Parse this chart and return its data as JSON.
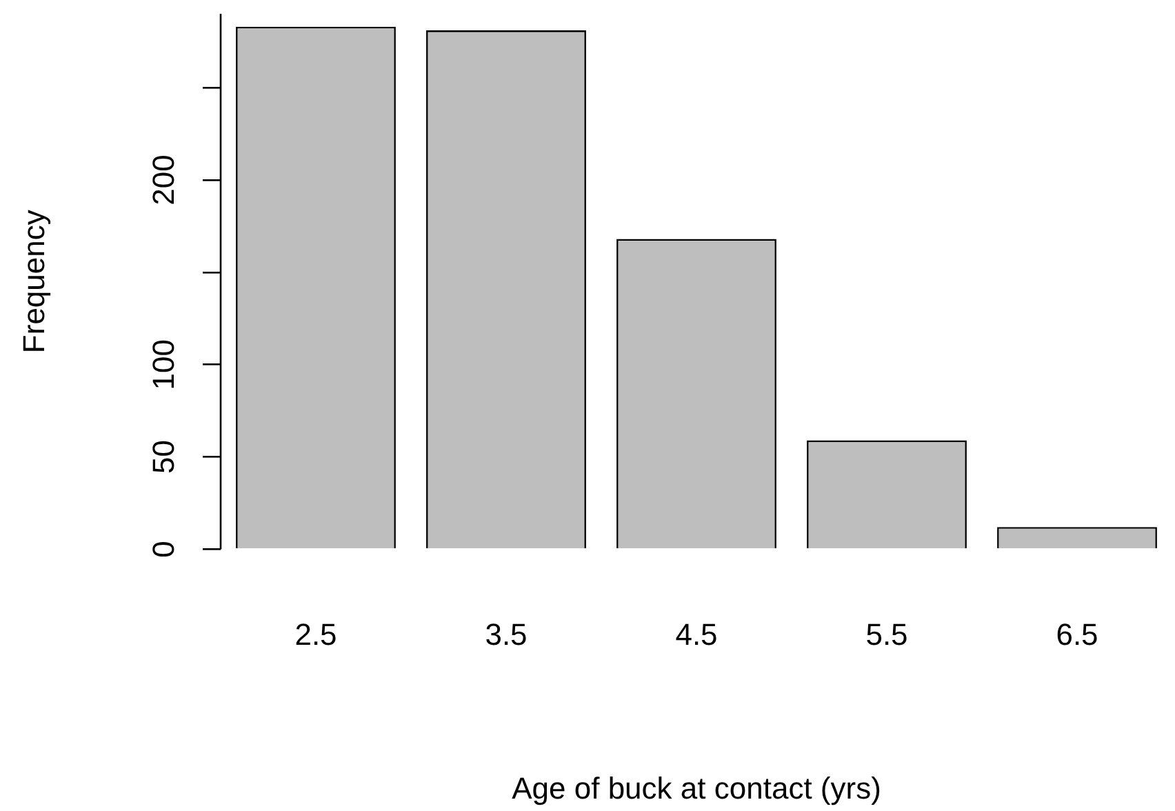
{
  "chart_data": {
    "type": "bar",
    "xlabel": "Age of buck at contact (yrs)",
    "ylabel": "Frequency",
    "categories": [
      "2.5",
      "3.5",
      "4.5",
      "5.5",
      "6.5"
    ],
    "values": [
      283,
      281,
      168,
      59,
      12
    ],
    "color": "#bebebe",
    "ylim": [
      0,
      290
    ],
    "yticks": [
      0,
      50,
      100,
      {
        "value": 150,
        "label": null
      },
      200,
      {
        "value": 250,
        "label": null
      }
    ],
    "grid": false,
    "legend": false
  }
}
